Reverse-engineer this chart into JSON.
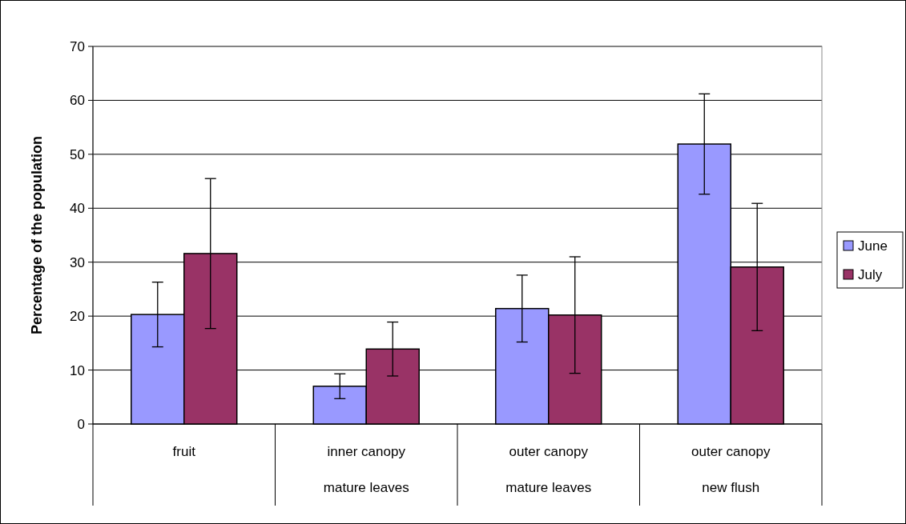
{
  "chart_data": {
    "type": "bar",
    "ylabel": "Percentage of the population",
    "categories": [
      "fruit",
      "inner canopy\nmature leaves",
      "outer canopy\nmature leaves",
      "outer canopy\nnew flush"
    ],
    "series": [
      {
        "name": "June",
        "color": "#9999ff",
        "values": [
          20.3,
          7.0,
          21.4,
          51.9
        ],
        "errors": [
          6.0,
          2.3,
          6.2,
          9.3
        ]
      },
      {
        "name": "July",
        "color": "#993366",
        "values": [
          31.6,
          13.9,
          20.2,
          29.1
        ],
        "errors": [
          13.9,
          5.0,
          10.8,
          11.8
        ]
      }
    ],
    "ylim": [
      0,
      70
    ],
    "yticks": [
      0,
      10,
      20,
      30,
      40,
      50,
      60,
      70
    ],
    "grid": "y",
    "legend": "right"
  }
}
